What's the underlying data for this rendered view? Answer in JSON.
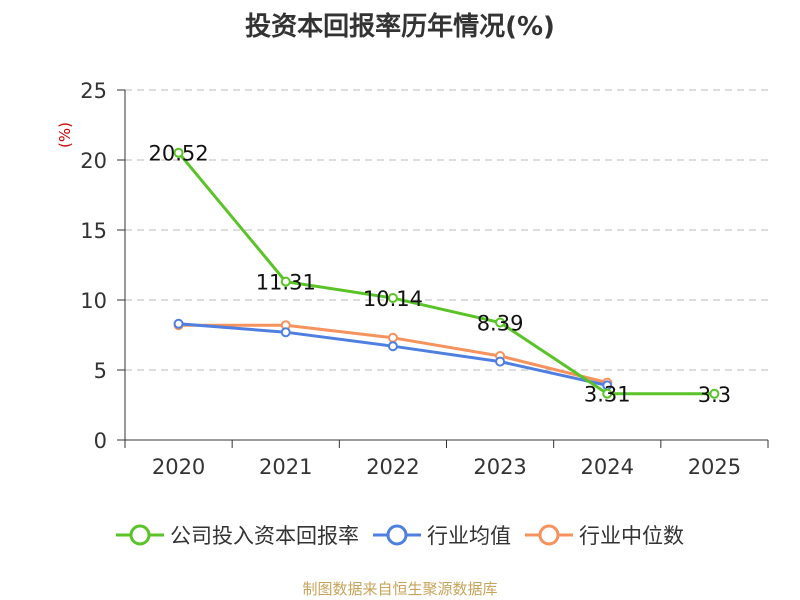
{
  "chart_data": {
    "type": "line",
    "title": "投资本回报率历年情况(%)",
    "ylabel": "(%)",
    "xlabel": "",
    "ylim": [
      0,
      25
    ],
    "yticks": [
      0,
      5,
      10,
      15,
      20,
      25
    ],
    "categories": [
      "2020",
      "2021",
      "2022",
      "2023",
      "2024",
      "2025"
    ],
    "series": [
      {
        "name": "公司投入资本回报率",
        "color": "#5ac327",
        "values": [
          20.52,
          11.31,
          10.14,
          8.39,
          3.31,
          3.3
        ],
        "labels": [
          "20.52",
          "11.31",
          "10.14",
          "8.39",
          "3.31",
          "3.3"
        ]
      },
      {
        "name": "行业均值",
        "color": "#4f7fe0",
        "values": [
          8.3,
          7.7,
          6.7,
          5.6,
          3.9,
          null
        ]
      },
      {
        "name": "行业中位数",
        "color": "#f5925d",
        "values": [
          8.2,
          8.2,
          7.3,
          6.0,
          4.1,
          null
        ]
      }
    ],
    "legend_position": "bottom",
    "grid": true
  },
  "source": "制图数据来自恒生聚源数据库"
}
